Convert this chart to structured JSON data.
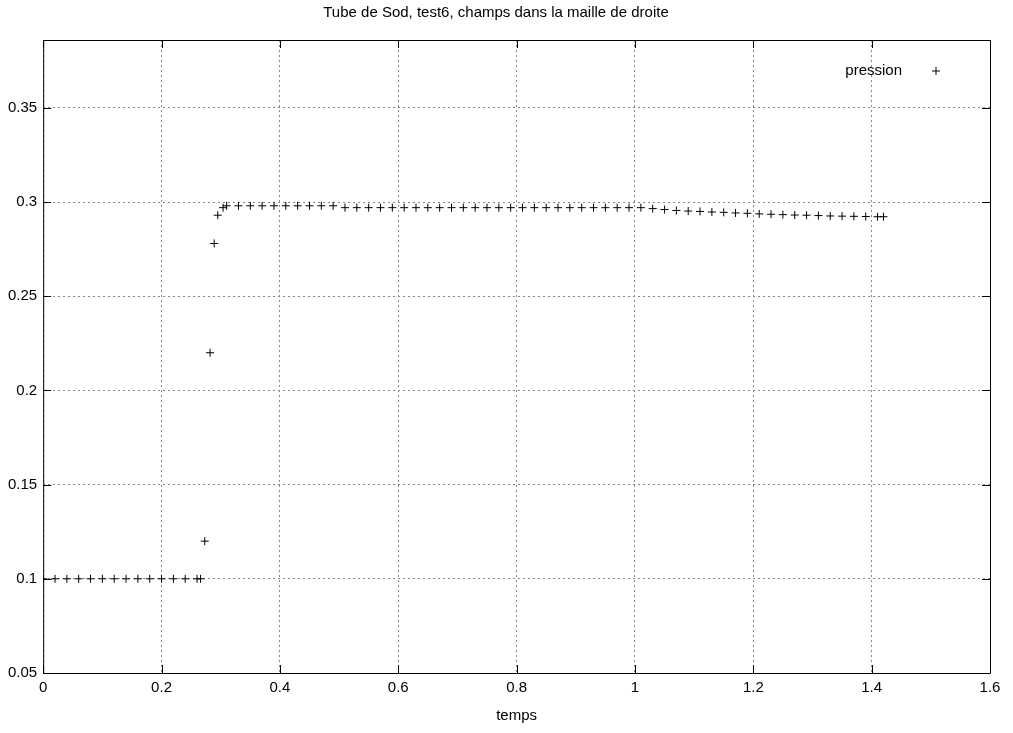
{
  "chart_data": {
    "type": "scatter",
    "title": "Tube de Sod, test6, champs dans la maille de droite",
    "xlabel": "temps",
    "marker": "cross",
    "grid": true,
    "legend": "top right",
    "xlim": [
      0,
      1.6
    ],
    "xticks": [
      0,
      0.2,
      0.4,
      0.6,
      0.8,
      1,
      1.2,
      1.4,
      1.6
    ],
    "ylim": [
      0.05,
      0.386
    ],
    "yticks": [
      0.05,
      0.1,
      0.15,
      0.2,
      0.25,
      0.3,
      0.35
    ],
    "series": [
      {
        "name": "pression",
        "color": "#000000",
        "x": [
          0,
          0.02,
          0.04,
          0.06,
          0.08,
          0.1,
          0.12,
          0.14,
          0.16,
          0.18,
          0.2,
          0.22,
          0.24,
          0.26,
          0.266,
          0.273,
          0.282,
          0.289,
          0.295,
          0.304,
          0.31,
          0.33,
          0.35,
          0.37,
          0.39,
          0.41,
          0.43,
          0.45,
          0.47,
          0.49,
          0.51,
          0.53,
          0.55,
          0.57,
          0.59,
          0.61,
          0.63,
          0.65,
          0.67,
          0.69,
          0.71,
          0.73,
          0.75,
          0.77,
          0.79,
          0.81,
          0.83,
          0.85,
          0.87,
          0.89,
          0.91,
          0.93,
          0.95,
          0.97,
          0.99,
          1.01,
          1.03,
          1.05,
          1.07,
          1.09,
          1.11,
          1.13,
          1.15,
          1.17,
          1.19,
          1.21,
          1.23,
          1.25,
          1.27,
          1.29,
          1.31,
          1.33,
          1.35,
          1.37,
          1.39,
          1.41,
          1.42
        ],
        "values": [
          0.1,
          0.1,
          0.1,
          0.1,
          0.1,
          0.1,
          0.1,
          0.1,
          0.1,
          0.1,
          0.1,
          0.1,
          0.1,
          0.1,
          0.1,
          0.12,
          0.22,
          0.278,
          0.293,
          0.297,
          0.298,
          0.298,
          0.298,
          0.298,
          0.298,
          0.298,
          0.298,
          0.298,
          0.298,
          0.298,
          0.297,
          0.297,
          0.297,
          0.297,
          0.297,
          0.297,
          0.297,
          0.297,
          0.297,
          0.297,
          0.297,
          0.297,
          0.297,
          0.297,
          0.297,
          0.297,
          0.297,
          0.297,
          0.297,
          0.297,
          0.297,
          0.297,
          0.297,
          0.297,
          0.297,
          0.297,
          0.2965,
          0.296,
          0.2955,
          0.2952,
          0.295,
          0.2947,
          0.2945,
          0.2942,
          0.294,
          0.2937,
          0.2935,
          0.2933,
          0.2931,
          0.293,
          0.2928,
          0.2926,
          0.2925,
          0.2924,
          0.2923,
          0.2922,
          0.2922
        ]
      }
    ]
  }
}
